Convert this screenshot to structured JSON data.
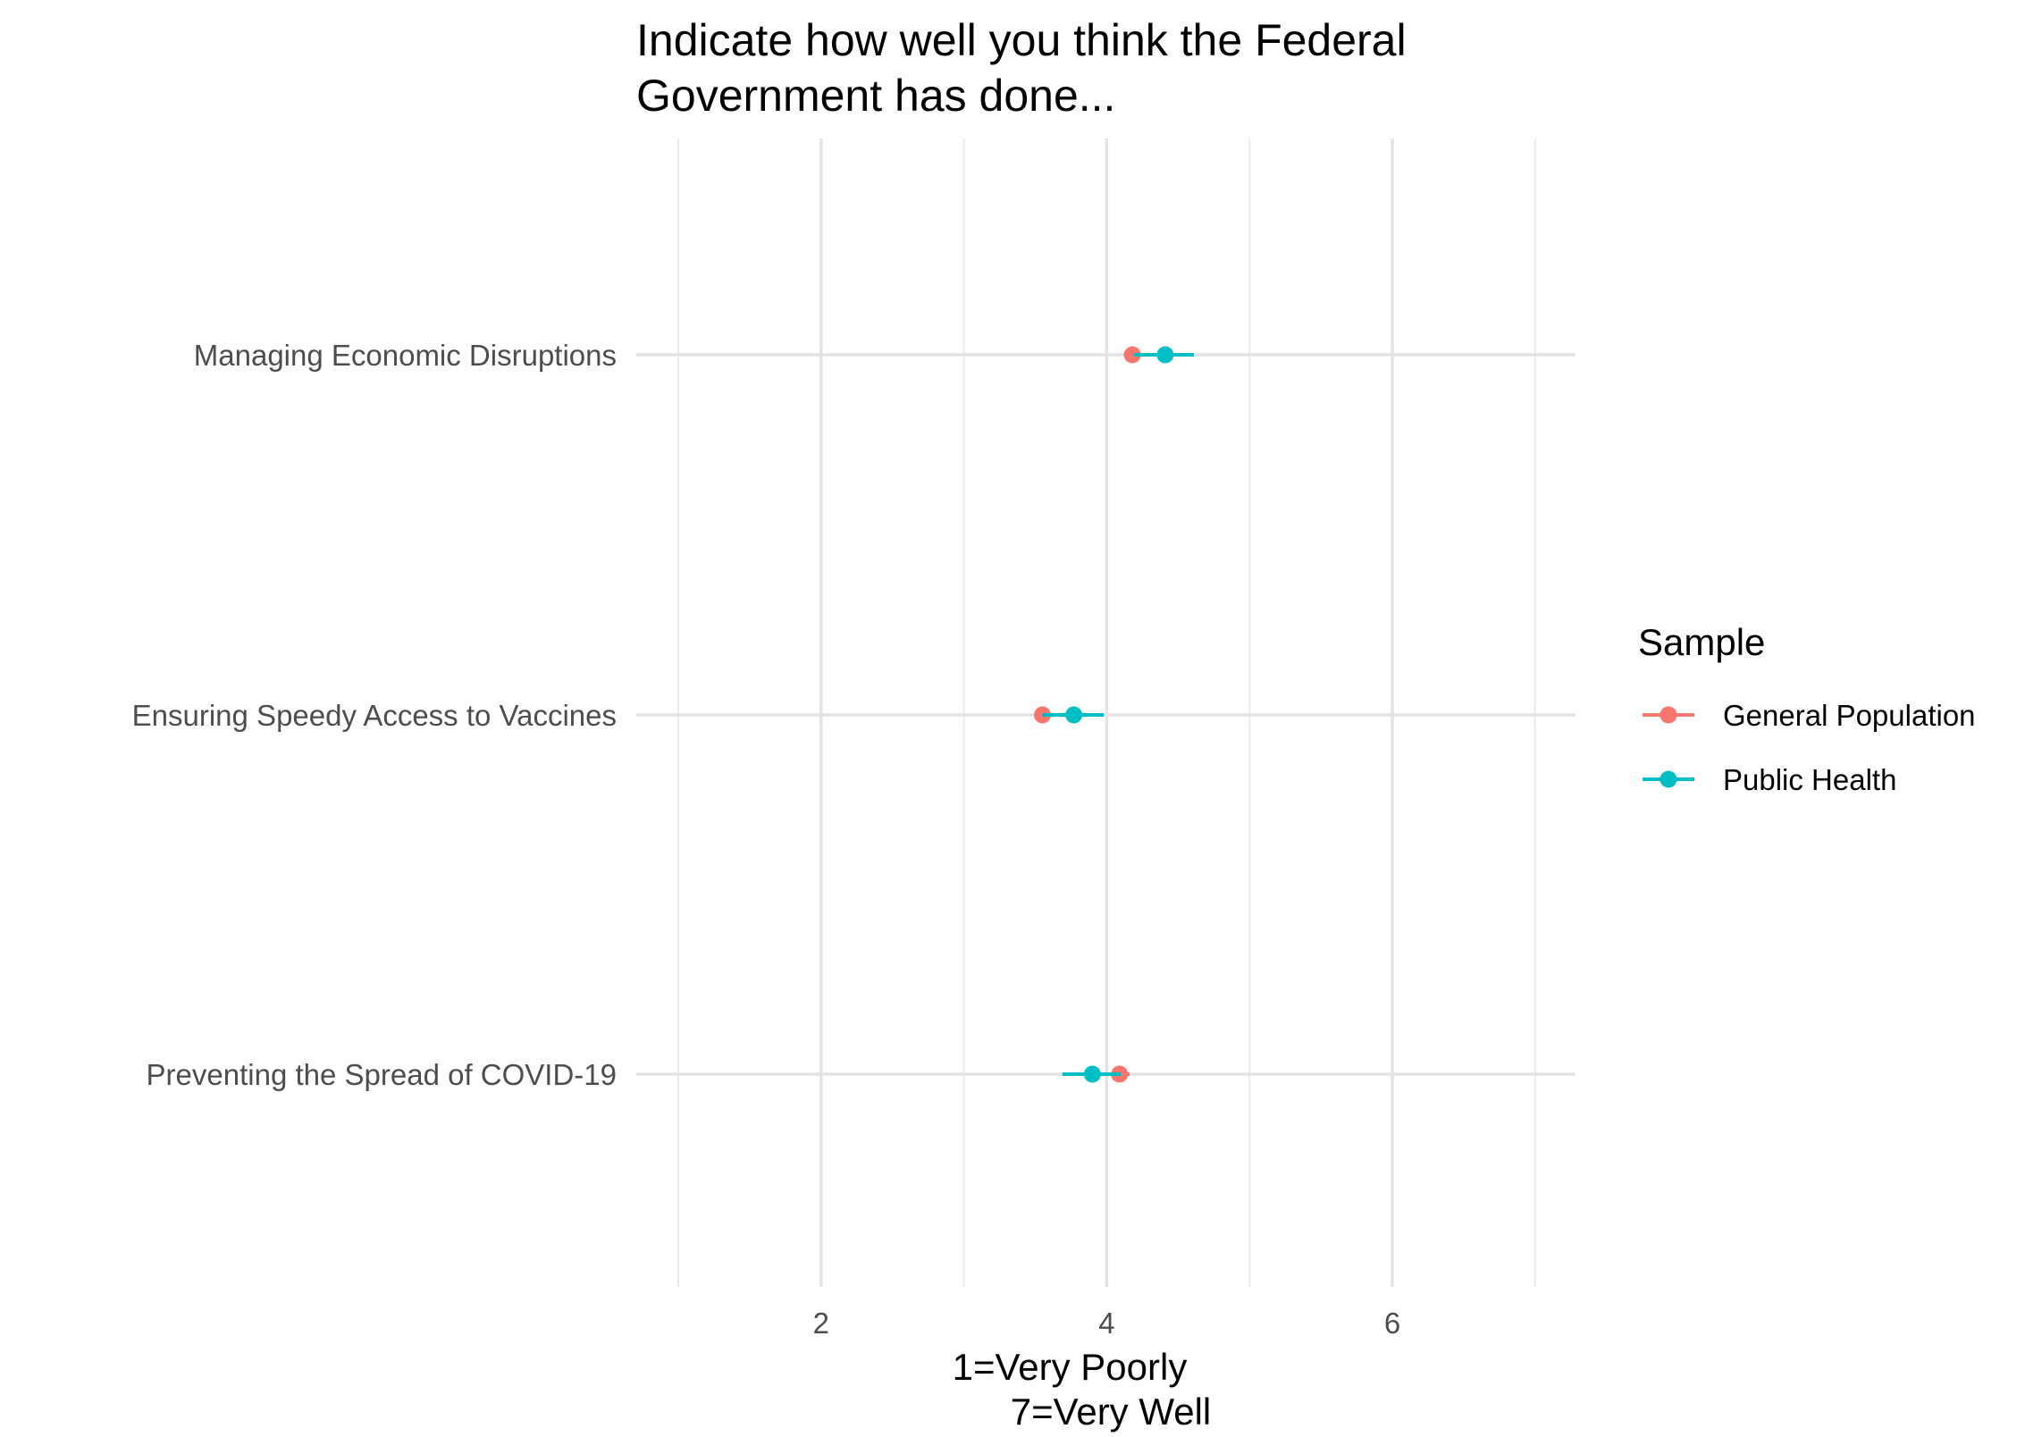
{
  "chart_data": {
    "type": "scatter",
    "title_lines": [
      "Indicate how well you think the Federal",
      "Government has done..."
    ],
    "xlabel_lines": [
      "1=Very Poorly",
      "7=Very Well"
    ],
    "ylabel": "",
    "xlim": [
      1,
      7
    ],
    "x_major_ticks": [
      2,
      4,
      6
    ],
    "x_minor_ticks": [
      1,
      3,
      5,
      7
    ],
    "categories": [
      "Managing Economic Disruptions",
      "Ensuring Speedy Access to Vaccines",
      "Preventing the Spread of COVID-19"
    ],
    "grid": true,
    "legend": {
      "title": "Sample",
      "position": "right"
    },
    "series": [
      {
        "name": "General Population",
        "color": "#F8766D",
        "values": [
          4.18,
          3.55,
          4.09
        ],
        "lower": [
          4.12,
          3.5,
          4.02
        ],
        "upper": [
          4.25,
          3.62,
          4.16
        ]
      },
      {
        "name": "Public Health",
        "color": "#00BFC4",
        "values": [
          4.41,
          3.77,
          3.9
        ],
        "lower": [
          4.19,
          3.55,
          3.69
        ],
        "upper": [
          4.61,
          3.98,
          4.1
        ]
      }
    ]
  }
}
